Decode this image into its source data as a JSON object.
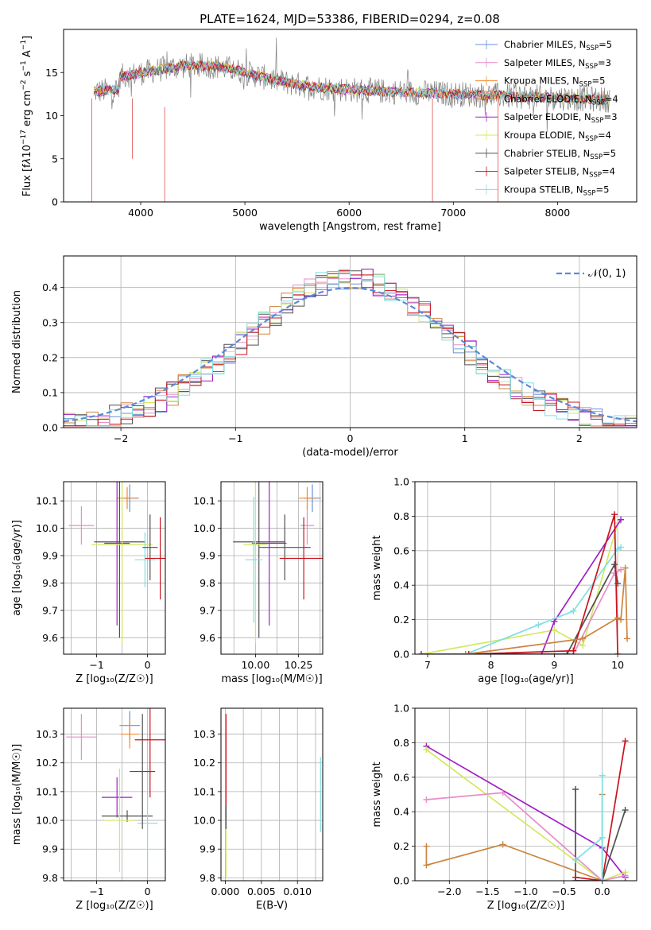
{
  "title": "PLATE=1624, MJD=53386, FIBERID=0294, z=0.08",
  "chart_data": [
    {
      "id": "spectrum",
      "type": "line",
      "xlabel": "wavelength [Angstrom, rest frame]",
      "ylabel": "Flux [fλ10⁻¹⁷ erg cm⁻² s⁻¹ A⁻¹]",
      "xlim": [
        3260,
        8760
      ],
      "ylim": [
        0,
        20
      ],
      "xticks": [
        "4000",
        "5000",
        "6000",
        "7000",
        "8000"
      ],
      "yticks": [
        "0",
        "5",
        "10",
        "15"
      ],
      "grid": false,
      "legend_position": "top-right",
      "series": [
        {
          "name": "Chabrier MILES, N_SSP=5",
          "color": "#6a8fd8"
        },
        {
          "name": "Salpeter MILES, N_SSP=3",
          "color": "#e68ec8"
        },
        {
          "name": "Kroupa MILES, N_SSP=5",
          "color": "#f08a30"
        },
        {
          "name": "Chabrier ELODIE, N_SSP=4",
          "color": "#cd853f"
        },
        {
          "name": "Salpeter ELODIE, N_SSP=3",
          "color": "#a020c8"
        },
        {
          "name": "Kroupa ELODIE, N_SSP=4",
          "color": "#d4e860"
        },
        {
          "name": "Chabrier STELIB, N_SSP=5",
          "color": "#505050"
        },
        {
          "name": "Salpeter STELIB, N_SSP=4",
          "color": "#c8141e"
        },
        {
          "name": "Kroupa STELIB, N_SSP=5",
          "color": "#80dfe0"
        }
      ],
      "observed": {
        "name": "data",
        "color": "#808080"
      }
    },
    {
      "id": "residuals",
      "type": "line",
      "xlabel": "(data-model)/error",
      "ylabel": "Normed distribution",
      "xlim": [
        -2.5,
        2.5
      ],
      "ylim": [
        0,
        0.49
      ],
      "xticks": [
        "−2",
        "−1",
        "0",
        "1",
        "2"
      ],
      "yticks": [
        "0.0",
        "0.1",
        "0.2",
        "0.3",
        "0.4"
      ],
      "grid": true,
      "legend_position": "top-right",
      "gaussian_label": "𝒩(0, 1)",
      "gaussian_color": "#5b8ad8",
      "bin_width": 0.1
    },
    {
      "id": "age-vs-Z",
      "type": "scatter",
      "xlabel": "Z [log₁₀(Z/Z☉)]",
      "ylabel": "age  [log₁₀(age/yr)]",
      "xlim": [
        -1.65,
        0.35
      ],
      "ylim": [
        9.54,
        10.17
      ],
      "xticks": [
        "−1",
        "0"
      ],
      "yticks": [
        "9.6",
        "9.7",
        "9.8",
        "9.9",
        "10.0",
        "10.1"
      ],
      "grid": true,
      "points": [
        {
          "color": "#e68ec8",
          "x": -1.3,
          "xerr": 0.25,
          "y": 10.01,
          "yerr": 0.07
        },
        {
          "color": "#6a8fd8",
          "x": -0.35,
          "xerr": 0.18,
          "y": 10.11,
          "yerr": 0.05
        },
        {
          "color": "#f08a30",
          "x": -0.4,
          "xerr": 0.2,
          "y": 10.11,
          "yerr": 0.04
        },
        {
          "color": "#505050",
          "x": -0.55,
          "xerr": 0.5,
          "y": 9.95,
          "yerr": 0.35
        },
        {
          "color": "#a020c8",
          "x": -0.6,
          "xerr": 0.25,
          "y": 9.945,
          "yerr": 0.3
        },
        {
          "color": "#d4e860",
          "x": -0.5,
          "xerr": 0.6,
          "y": 9.94,
          "yerr": 0.36
        },
        {
          "color": "#80dfe0",
          "x": -0.05,
          "xerr": 0.2,
          "y": 9.885,
          "yerr": 0.1
        },
        {
          "color": "#505050",
          "x": 0.05,
          "xerr": 0.15,
          "y": 9.93,
          "yerr": 0.12
        },
        {
          "color": "#c8141e",
          "x": 0.25,
          "xerr": 0.3,
          "y": 9.89,
          "yerr": 0.15
        }
      ]
    },
    {
      "id": "age-vs-mass",
      "type": "scatter",
      "xlabel": "mass [log₁₀(M/M☉)]",
      "ylabel": "",
      "xlim": [
        9.8,
        10.39
      ],
      "ylim": [
        9.54,
        10.17
      ],
      "xticks": [
        "10.00",
        "10.25"
      ],
      "yticks": [
        "9.6",
        "9.7",
        "9.8",
        "9.9",
        "10.0",
        "10.1"
      ],
      "grid": true,
      "points": [
        {
          "color": "#e68ec8",
          "x": 10.3,
          "xerr": 0.04,
          "y": 10.01,
          "yerr": 0.07
        },
        {
          "color": "#6a8fd8",
          "x": 10.33,
          "xerr": 0.05,
          "y": 10.11,
          "yerr": 0.05
        },
        {
          "color": "#f08a30",
          "x": 10.3,
          "xerr": 0.05,
          "y": 10.11,
          "yerr": 0.04
        },
        {
          "color": "#505050",
          "x": 10.02,
          "xerr": 0.15,
          "y": 9.95,
          "yerr": 0.35
        },
        {
          "color": "#a020c8",
          "x": 10.08,
          "xerr": 0.1,
          "y": 9.945,
          "yerr": 0.3
        },
        {
          "color": "#d4e860",
          "x": 10.0,
          "xerr": 0.07,
          "y": 9.94,
          "yerr": 0.36
        },
        {
          "color": "#80dfe0",
          "x": 9.99,
          "xerr": 0.05,
          "y": 9.885,
          "yerr": 0.23
        },
        {
          "color": "#505050",
          "x": 10.17,
          "xerr": 0.15,
          "y": 9.93,
          "yerr": 0.12
        },
        {
          "color": "#c8141e",
          "x": 10.28,
          "xerr": 0.14,
          "y": 9.89,
          "yerr": 0.15
        }
      ]
    },
    {
      "id": "mass-weight-vs-age",
      "type": "line",
      "xlabel": "age  [log₁₀(age/yr)]",
      "ylabel": "mass weight",
      "xlim": [
        6.8,
        10.3
      ],
      "ylim": [
        0,
        1.0
      ],
      "xticks": [
        "7",
        "8",
        "9",
        "10"
      ],
      "yticks": [
        "0.0",
        "0.2",
        "0.4",
        "0.6",
        "0.8",
        "1.0"
      ],
      "grid": true,
      "series": [
        {
          "color": "#d4e860",
          "x": [
            6.9,
            9.0,
            9.45,
            10.0
          ],
          "y": [
            0.0,
            0.14,
            0.05,
            0.76
          ]
        },
        {
          "color": "#a020c8",
          "x": [
            6.9,
            8.8,
            9.0,
            10.05
          ],
          "y": [
            0.0,
            0.0,
            0.19,
            0.78
          ]
        },
        {
          "color": "#80dfe0",
          "x": [
            7.6,
            8.75,
            9.3,
            10.0,
            10.05
          ],
          "y": [
            0.0,
            0.17,
            0.25,
            0.61,
            0.62
          ]
        },
        {
          "color": "#e68ec8",
          "x": [
            7.65,
            9.3,
            9.95,
            10.05
          ],
          "y": [
            0.0,
            0.0,
            0.47,
            0.49
          ]
        },
        {
          "color": "#505050",
          "x": [
            7.6,
            9.2,
            9.95,
            10.0
          ],
          "y": [
            0.0,
            0.0,
            0.52,
            0.41
          ]
        },
        {
          "color": "#c8141e",
          "x": [
            7.65,
            9.3,
            9.95,
            10.0
          ],
          "y": [
            0.0,
            0.02,
            0.81,
            0.0
          ]
        },
        {
          "color": "#cd853f",
          "x": [
            7.6,
            9.45,
            10.0,
            10.05,
            10.12,
            10.15
          ],
          "y": [
            0.0,
            0.09,
            0.21,
            0.2,
            0.5,
            0.09
          ]
        }
      ]
    },
    {
      "id": "mass-vs-Z",
      "type": "scatter",
      "xlabel": "Z [log₁₀(Z/Z☉)]",
      "ylabel": "mass [log₁₀(M/M☉)]",
      "xlim": [
        -1.65,
        0.35
      ],
      "ylim": [
        9.79,
        10.39
      ],
      "xticks": [
        "−1",
        "0"
      ],
      "yticks": [
        "9.8",
        "9.9",
        "10.0",
        "10.1",
        "10.2",
        "10.3"
      ],
      "grid": true,
      "points": [
        {
          "color": "#e68ec8",
          "x": -1.3,
          "xerr": 0.3,
          "y": 10.29,
          "yerr": 0.08
        },
        {
          "color": "#6a8fd8",
          "x": -0.35,
          "xerr": 0.2,
          "y": 10.33,
          "yerr": 0.05
        },
        {
          "color": "#f08a30",
          "x": -0.35,
          "xerr": 0.18,
          "y": 10.3,
          "yerr": 0.05
        },
        {
          "color": "#a020c8",
          "x": -0.6,
          "xerr": 0.3,
          "y": 10.08,
          "yerr": 0.07
        },
        {
          "color": "#505050",
          "x": -0.4,
          "xerr": 0.5,
          "y": 10.015,
          "yerr": 0.02
        },
        {
          "color": "#d4e860",
          "x": -0.55,
          "xerr": 0.3,
          "y": 10.0,
          "yerr": 0.18
        },
        {
          "color": "#80dfe0",
          "x": 0.0,
          "xerr": 0.2,
          "y": 9.99,
          "yerr": 0.18
        },
        {
          "color": "#505050",
          "x": -0.1,
          "xerr": 0.25,
          "y": 10.17,
          "yerr": 0.2
        },
        {
          "color": "#c8141e",
          "x": 0.05,
          "xerr": 0.3,
          "y": 10.28,
          "yerr": 0.2
        }
      ]
    },
    {
      "id": "mass-vs-EBV",
      "type": "scatter",
      "xlabel": "E(B-V)",
      "ylabel": "",
      "xlim": [
        -0.0006,
        0.0135
      ],
      "ylim": [
        9.79,
        10.39
      ],
      "xticks": [
        "0.000",
        "0.005",
        "0.010"
      ],
      "yticks": [
        "9.8",
        "9.9",
        "10.0",
        "10.1",
        "10.2",
        "10.3"
      ],
      "grid": true,
      "points": [
        {
          "color": "#c8141e",
          "x": 0.0001,
          "xerr": 0,
          "y": 10.17,
          "yerr": 0.2
        },
        {
          "color": "#d4e860",
          "x": 0.0001,
          "xerr": 0,
          "y": 9.9,
          "yerr": 0.1
        },
        {
          "color": "#505050",
          "x": 0.0001,
          "xerr": 0,
          "y": 10.01,
          "yerr": 0.04
        },
        {
          "color": "#80dfe0",
          "x": 0.0132,
          "xerr": 0,
          "y": 10.09,
          "yerr": 0.13
        }
      ]
    },
    {
      "id": "mass-weight-vs-Z",
      "type": "line",
      "xlabel": "Z [log₁₀(Z/Z☉)]",
      "ylabel": "mass weight",
      "xlim": [
        -2.45,
        0.45
      ],
      "ylim": [
        0,
        1.0
      ],
      "xticks": [
        "−2.0",
        "−1.5",
        "−1.0",
        "−0.5",
        "0.0"
      ],
      "yticks": [
        "0.0",
        "0.2",
        "0.4",
        "0.6",
        "0.8",
        "1.0"
      ],
      "grid": true,
      "series": [
        {
          "color": "#a020c8",
          "x": [
            -2.3,
            0.0,
            0.3
          ],
          "y": [
            0.78,
            0.19,
            0.02
          ]
        },
        {
          "color": "#d4e860",
          "x": [
            -2.3,
            0.0,
            0.3
          ],
          "y": [
            0.76,
            0.0,
            0.05
          ]
        },
        {
          "color": "#e68ec8",
          "x": [
            -2.3,
            -1.3,
            0.0,
            0.3
          ],
          "y": [
            0.47,
            0.51,
            0.0,
            0.03
          ]
        },
        {
          "color": "#cd853f",
          "x": [
            -2.3,
            -2.3,
            -1.3,
            0.0,
            0.0
          ],
          "y": [
            0.2,
            0.09,
            0.21,
            0.0,
            0.5
          ]
        },
        {
          "color": "#505050",
          "x": [
            -0.35,
            -0.35,
            0.0,
            0.3
          ],
          "y": [
            0.53,
            0.0,
            0.0,
            0.41
          ]
        },
        {
          "color": "#c8141e",
          "x": [
            -0.35,
            0.0,
            0.3
          ],
          "y": [
            0.02,
            0.0,
            0.81
          ]
        },
        {
          "color": "#80dfe0",
          "x": [
            -0.35,
            0.0,
            0.0,
            0.0
          ],
          "y": [
            0.12,
            0.25,
            0.0,
            0.61
          ]
        }
      ]
    }
  ]
}
